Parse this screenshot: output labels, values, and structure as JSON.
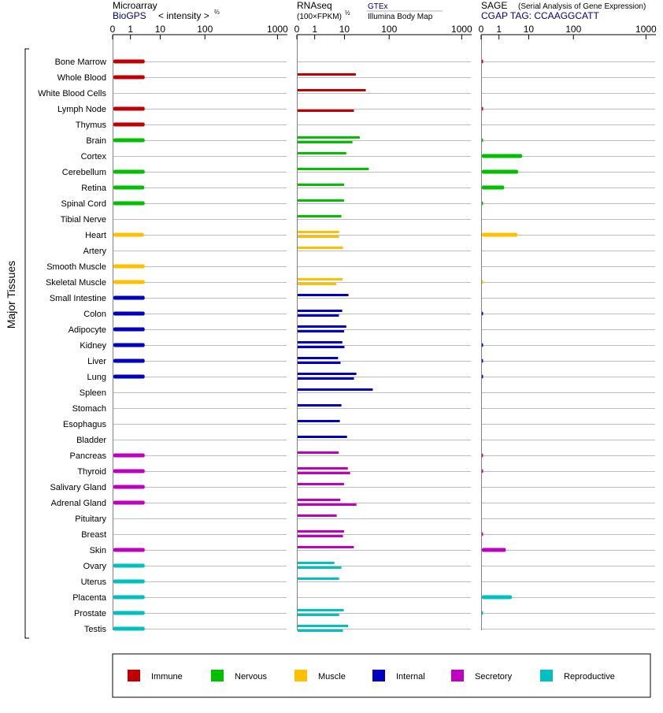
{
  "panels": {
    "microarray": {
      "title": "Microarray",
      "source": "BioGPS",
      "scale_label": "< intensity >",
      "scale_exponent": "⅔"
    },
    "rnaseq": {
      "title": "RNAseq",
      "scale_label": "(100×FPKM)",
      "scale_exponent": "½",
      "legend_series_1": "GTEx",
      "legend_series_2": "Illumina Body Map"
    },
    "sage": {
      "title": "SAGE",
      "subtitle": "(Serial Analysis of Gene Expression)",
      "tag_label": "CGAP TAG: CCAAGGCATT"
    }
  },
  "y_axis_label": "Major Tissues",
  "axis_ticks": [
    "0",
    "1",
    "10",
    "100",
    "1000"
  ],
  "legend": [
    {
      "label": "Immune",
      "color": "#c00000"
    },
    {
      "label": "Nervous",
      "color": "#00c000"
    },
    {
      "label": "Muscle",
      "color": "#ffc000"
    },
    {
      "label": "Internal",
      "color": "#0000c0"
    },
    {
      "label": "Secretory",
      "color": "#c000c0"
    },
    {
      "label": "Reproductive",
      "color": "#00c0c0"
    }
  ],
  "chart_data": {
    "type": "bar",
    "orientation": "horizontal",
    "x_scale": "log-like",
    "xlim": [
      0,
      1000
    ],
    "categories": [
      "Bone Marrow",
      "Whole Blood",
      "White Blood Cells",
      "Lymph Node",
      "Thymus",
      "Brain",
      "Cortex",
      "Cerebellum",
      "Retina",
      "Spinal Cord",
      "Tibial Nerve",
      "Heart",
      "Artery",
      "Smooth Muscle",
      "Skeletal Muscle",
      "Small Intestine",
      "Colon",
      "Adipocyte",
      "Kidney",
      "Liver",
      "Lung",
      "Spleen",
      "Stomach",
      "Esophagus",
      "Bladder",
      "Pancreas",
      "Thyroid",
      "Salivary Gland",
      "Adrenal Gland",
      "Pituitary",
      "Breast",
      "Skin",
      "Ovary",
      "Uterus",
      "Placenta",
      "Prostate",
      "Testis"
    ],
    "groups": [
      "Immune",
      "Immune",
      "Immune",
      "Immune",
      "Immune",
      "Nervous",
      "Nervous",
      "Nervous",
      "Nervous",
      "Nervous",
      "Nervous",
      "Muscle",
      "Muscle",
      "Muscle",
      "Muscle",
      "Internal",
      "Internal",
      "Internal",
      "Internal",
      "Internal",
      "Internal",
      "Internal",
      "Internal",
      "Internal",
      "Internal",
      "Secretory",
      "Secretory",
      "Secretory",
      "Secretory",
      "Secretory",
      "Secretory",
      "Secretory",
      "Reproductive",
      "Reproductive",
      "Reproductive",
      "Reproductive",
      "Reproductive"
    ],
    "microarray": [
      3,
      3,
      null,
      3,
      3,
      3,
      null,
      3,
      2.9,
      3,
      null,
      2.8,
      null,
      3,
      3,
      3,
      3,
      3,
      3,
      3,
      3,
      null,
      null,
      null,
      null,
      3,
      3,
      3,
      3,
      null,
      null,
      3,
      3,
      3,
      3,
      3,
      3
    ],
    "rnaseq_gtex": [
      null,
      18,
      30,
      null,
      null,
      22,
      11,
      35,
      9.7,
      9.7,
      7.9,
      6.6,
      9,
      null,
      8.6,
      12.3,
      8.4,
      11,
      8.5,
      6.1,
      18.5,
      43,
      7.9,
      7,
      11.4,
      6.4,
      11.9,
      9.7,
      7.3,
      5.5,
      9.7,
      16.2,
      4.6,
      6.6,
      null,
      9.5,
      12.1
    ],
    "rnaseq_ibm": [
      null,
      null,
      null,
      16.3,
      null,
      15.1,
      null,
      null,
      null,
      null,
      null,
      6.6,
      null,
      null,
      5.3,
      null,
      6.5,
      9.7,
      10,
      7.4,
      16.3,
      null,
      null,
      null,
      null,
      null,
      13.4,
      null,
      18.5,
      null,
      8.9,
      null,
      7.9,
      null,
      null,
      6.6,
      8.9
    ],
    "sage": [
      0.07,
      null,
      null,
      0.07,
      null,
      0.07,
      6,
      4.4,
      1.5,
      0.07,
      null,
      4.2,
      null,
      null,
      0.04,
      null,
      0.07,
      null,
      0.07,
      0.07,
      0.07,
      null,
      null,
      null,
      null,
      0.07,
      0.07,
      null,
      null,
      null,
      0.07,
      1.7,
      null,
      null,
      2.7,
      0.07,
      null
    ]
  }
}
